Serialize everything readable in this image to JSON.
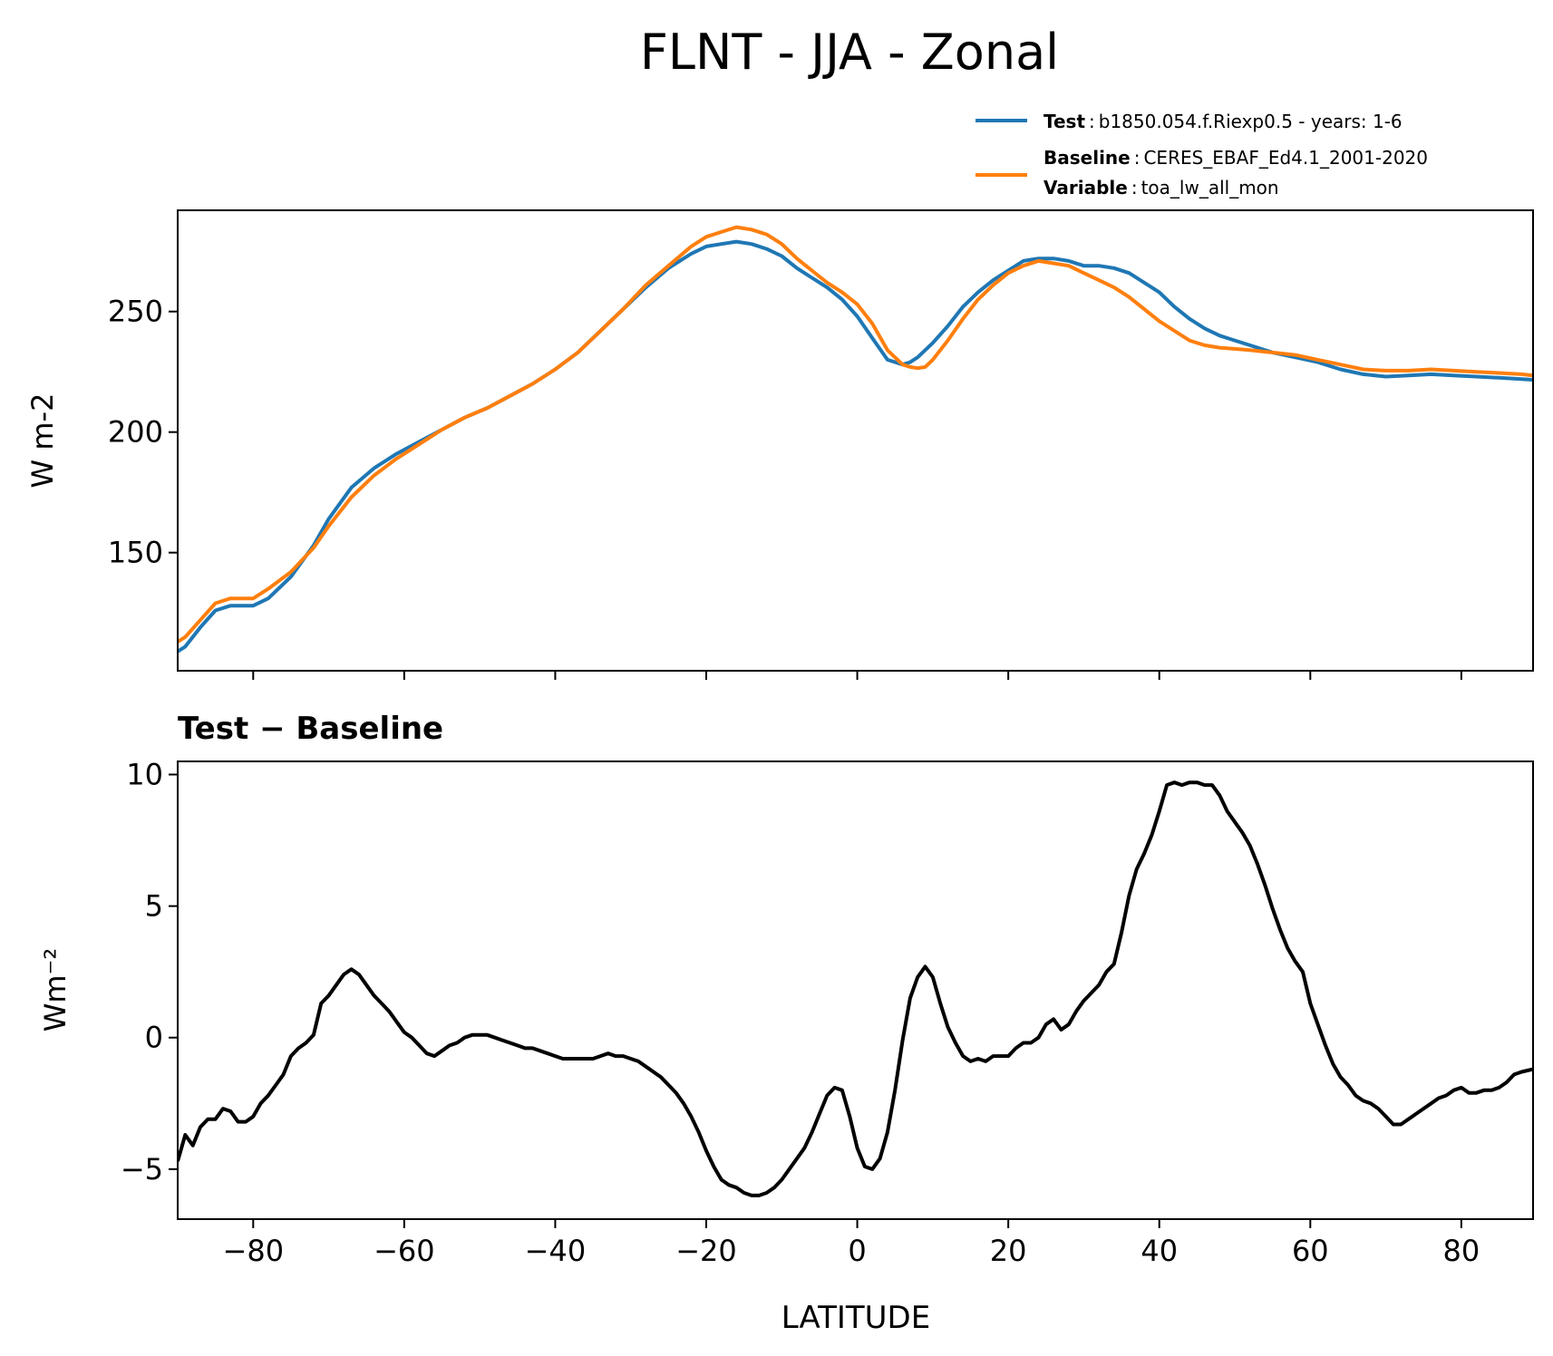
{
  "chart_data": [
    {
      "type": "line",
      "title": "FLNT - JJA - Zonal",
      "ylabel": "W m-2",
      "xlabel": "",
      "xlim": [
        -90,
        89.5
      ],
      "ylim": [
        101,
        292
      ],
      "xticks": [
        -80,
        -60,
        -40,
        -20,
        0,
        20,
        40,
        60,
        80
      ],
      "yticks": [
        150,
        200,
        250
      ],
      "ytick_labels": [
        "150",
        "200",
        "250"
      ],
      "legend": {
        "placement": "above top-right",
        "entries": [
          {
            "key": "Test",
            "sep": ":",
            "text": "b1850.054.f.Riexp0.5 - years: 1-6",
            "color": "#1f77b4"
          },
          {
            "key": "Baseline",
            "sep": ":",
            "text": "CERES_EBAF_Ed4.1_2001-2020",
            "color": "#ff7f0e"
          },
          {
            "key": "Variable",
            "sep": ":",
            "text": "toa_lw_all_mon",
            "color": ""
          }
        ]
      },
      "x": [
        -90,
        -89,
        -87,
        -85,
        -83,
        -80,
        -78,
        -75,
        -72,
        -70,
        -67,
        -64,
        -61,
        -58,
        -55,
        -52,
        -49,
        -46,
        -43,
        -40,
        -37,
        -34,
        -31,
        -28,
        -25,
        -22,
        -20,
        -18,
        -16,
        -14,
        -12,
        -10,
        -8,
        -6,
        -4,
        -2,
        0,
        2,
        4,
        6,
        7,
        8,
        9,
        10,
        12,
        14,
        16,
        18,
        20,
        22,
        24,
        26,
        28,
        30,
        32,
        34,
        36,
        38,
        40,
        42,
        44,
        46,
        48,
        50,
        52,
        55,
        58,
        61,
        64,
        67,
        70,
        73,
        76,
        79,
        82,
        85,
        88,
        89.5
      ],
      "series": [
        {
          "name": "Test",
          "color": "#1f77b4",
          "values": [
            109,
            111,
            119,
            126,
            128,
            128,
            131,
            140,
            153,
            164,
            177,
            185,
            191,
            196,
            201,
            206,
            210,
            215,
            220,
            226,
            233,
            242,
            251,
            260,
            268,
            274,
            277,
            278,
            279,
            278,
            276,
            273,
            268,
            264,
            260,
            255,
            248,
            239,
            230,
            228,
            229,
            231,
            234,
            237,
            244,
            252,
            258,
            263,
            267,
            271,
            272,
            272,
            271,
            269,
            269,
            268,
            266,
            262,
            258,
            252,
            247,
            243,
            240,
            238,
            236,
            233,
            231,
            229,
            226,
            224,
            223,
            223.5,
            224,
            223.5,
            223,
            222.5,
            222,
            221.7
          ]
        },
        {
          "name": "Baseline",
          "color": "#ff7f0e",
          "values": [
            113,
            115,
            122,
            129,
            131,
            131,
            135,
            142,
            152,
            161,
            173,
            182,
            189,
            195,
            201,
            206,
            210,
            215,
            220,
            226,
            233,
            242,
            251,
            261,
            269,
            277,
            281,
            283,
            285,
            284,
            282,
            278,
            272,
            267,
            262,
            258,
            253,
            245,
            234,
            228,
            227,
            226.5,
            227,
            230,
            238,
            247,
            255,
            261,
            266,
            269,
            271,
            270,
            269,
            266,
            263,
            260,
            256,
            251,
            246,
            242,
            238,
            236,
            235,
            234.5,
            234,
            233,
            232,
            230,
            228,
            226,
            225.5,
            225.5,
            226,
            225.5,
            225,
            224.5,
            224,
            223.5
          ]
        }
      ]
    },
    {
      "type": "line",
      "title": "Test − Baseline",
      "ylabel": "Wm⁻²",
      "xlabel": "LATITUDE",
      "xlim": [
        -90,
        89.5
      ],
      "ylim": [
        -6.9,
        10.5
      ],
      "xticks": [
        -80,
        -60,
        -40,
        -20,
        0,
        20,
        40,
        60,
        80
      ],
      "xtick_labels": [
        "−80",
        "−60",
        "−40",
        "−20",
        "0",
        "20",
        "40",
        "60",
        "80"
      ],
      "yticks": [
        -5,
        0,
        5,
        10
      ],
      "ytick_labels": [
        "−5",
        "0",
        "5",
        "10"
      ],
      "x": [
        -90,
        -89,
        -88,
        -87,
        -86,
        -85,
        -84,
        -83,
        -82,
        -81,
        -80,
        -79,
        -78,
        -77,
        -76,
        -75,
        -74,
        -73,
        -72,
        -71,
        -70,
        -69,
        -68,
        -67,
        -66,
        -65,
        -64,
        -63,
        -62,
        -61,
        -60,
        -59,
        -58,
        -57,
        -56,
        -55,
        -54,
        -53,
        -52,
        -51,
        -50,
        -49,
        -48,
        -47,
        -46,
        -45,
        -44,
        -43,
        -42,
        -41,
        -40,
        -39,
        -38,
        -37,
        -36,
        -35,
        -34,
        -33,
        -32,
        -31,
        -30,
        -29,
        -28,
        -27,
        -26,
        -25,
        -24,
        -23,
        -22,
        -21,
        -20,
        -19,
        -18,
        -17,
        -16,
        -15,
        -14,
        -13,
        -12,
        -11,
        -10,
        -9,
        -8,
        -7,
        -6,
        -5,
        -4,
        -3,
        -2,
        -1,
        0,
        1,
        2,
        3,
        4,
        5,
        6,
        7,
        8,
        9,
        10,
        11,
        12,
        13,
        14,
        15,
        16,
        17,
        18,
        19,
        20,
        21,
        22,
        23,
        24,
        25,
        26,
        27,
        28,
        29,
        30,
        31,
        32,
        33,
        34,
        35,
        36,
        37,
        38,
        39,
        40,
        41,
        42,
        43,
        44,
        45,
        46,
        47,
        48,
        49,
        50,
        51,
        52,
        53,
        54,
        55,
        56,
        57,
        58,
        59,
        60,
        61,
        62,
        63,
        64,
        65,
        66,
        67,
        68,
        69,
        70,
        71,
        72,
        73,
        74,
        75,
        76,
        77,
        78,
        79,
        80,
        81,
        82,
        83,
        84,
        85,
        86,
        87,
        88,
        89.5
      ],
      "series": [
        {
          "name": "",
          "color": "#000000",
          "values": [
            -4.7,
            -3.7,
            -4.1,
            -3.4,
            -3.1,
            -3.1,
            -2.7,
            -2.8,
            -3.2,
            -3.2,
            -3.0,
            -2.5,
            -2.2,
            -1.8,
            -1.4,
            -0.7,
            -0.4,
            -0.2,
            0.1,
            1.3,
            1.6,
            2.0,
            2.4,
            2.6,
            2.4,
            2.0,
            1.6,
            1.3,
            1.0,
            0.6,
            0.2,
            0.0,
            -0.3,
            -0.6,
            -0.7,
            -0.5,
            -0.3,
            -0.2,
            0.0,
            0.1,
            0.1,
            0.1,
            0.0,
            -0.1,
            -0.2,
            -0.3,
            -0.4,
            -0.4,
            -0.5,
            -0.6,
            -0.7,
            -0.8,
            -0.8,
            -0.8,
            -0.8,
            -0.8,
            -0.7,
            -0.6,
            -0.7,
            -0.7,
            -0.8,
            -0.9,
            -1.1,
            -1.3,
            -1.5,
            -1.8,
            -2.1,
            -2.5,
            -3.0,
            -3.6,
            -4.3,
            -4.9,
            -5.4,
            -5.6,
            -5.7,
            -5.9,
            -6.0,
            -6.0,
            -5.9,
            -5.7,
            -5.4,
            -5.0,
            -4.6,
            -4.2,
            -3.6,
            -2.9,
            -2.2,
            -1.9,
            -2.0,
            -3.0,
            -4.2,
            -4.9,
            -5.0,
            -4.6,
            -3.6,
            -2.0,
            -0.1,
            1.5,
            2.3,
            2.7,
            2.3,
            1.3,
            0.4,
            -0.2,
            -0.7,
            -0.9,
            -0.8,
            -0.9,
            -0.7,
            -0.7,
            -0.7,
            -0.4,
            -0.2,
            -0.2,
            0.0,
            0.5,
            0.7,
            0.3,
            0.5,
            1.0,
            1.4,
            1.7,
            2.0,
            2.5,
            2.8,
            4.0,
            5.4,
            6.4,
            7.0,
            7.7,
            8.6,
            9.6,
            9.7,
            9.6,
            9.7,
            9.7,
            9.6,
            9.6,
            9.2,
            8.6,
            8.2,
            7.8,
            7.3,
            6.6,
            5.8,
            4.9,
            4.1,
            3.4,
            2.9,
            2.5,
            1.3,
            0.5,
            -0.3,
            -1.0,
            -1.5,
            -1.8,
            -2.2,
            -2.4,
            -2.5,
            -2.7,
            -3.0,
            -3.3,
            -3.3,
            -3.1,
            -2.9,
            -2.7,
            -2.5,
            -2.3,
            -2.2,
            -2.0,
            -1.9,
            -2.1,
            -2.1,
            -2.0,
            -2.0,
            -1.9,
            -1.7,
            -1.4,
            -1.3,
            -1.2
          ]
        }
      ]
    }
  ]
}
